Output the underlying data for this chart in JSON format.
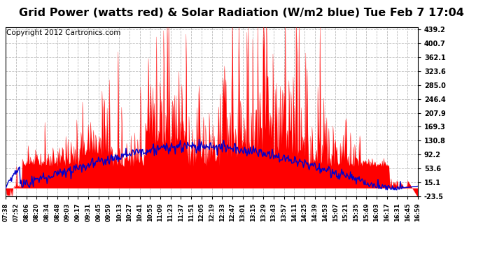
{
  "title": "Grid Power (watts red) & Solar Radiation (W/m2 blue) Tue Feb 7 17:04",
  "copyright": "Copyright 2012 Cartronics.com",
  "yticks": [
    439.2,
    400.7,
    362.1,
    323.6,
    285.0,
    246.4,
    207.9,
    169.3,
    130.8,
    92.2,
    53.6,
    15.1,
    -23.5
  ],
  "xtick_labels": [
    "07:38",
    "07:52",
    "08:06",
    "08:20",
    "08:34",
    "08:48",
    "09:03",
    "09:17",
    "09:31",
    "09:45",
    "09:59",
    "10:13",
    "10:27",
    "10:41",
    "10:55",
    "11:09",
    "11:23",
    "11:37",
    "11:51",
    "12:05",
    "12:19",
    "12:33",
    "12:47",
    "13:01",
    "13:15",
    "13:29",
    "13:43",
    "13:57",
    "14:11",
    "14:25",
    "14:39",
    "14:53",
    "15:07",
    "15:21",
    "15:35",
    "15:49",
    "16:03",
    "16:17",
    "16:31",
    "16:45",
    "16:59"
  ],
  "ymin": -23.5,
  "ymax": 444.0,
  "bg_color": "#ffffff",
  "plot_bg_color": "#ffffff",
  "grid_color": "#bbbbbb",
  "red_color": "#ff0000",
  "blue_color": "#0000cc",
  "title_fontsize": 11.5,
  "copyright_fontsize": 7.5
}
